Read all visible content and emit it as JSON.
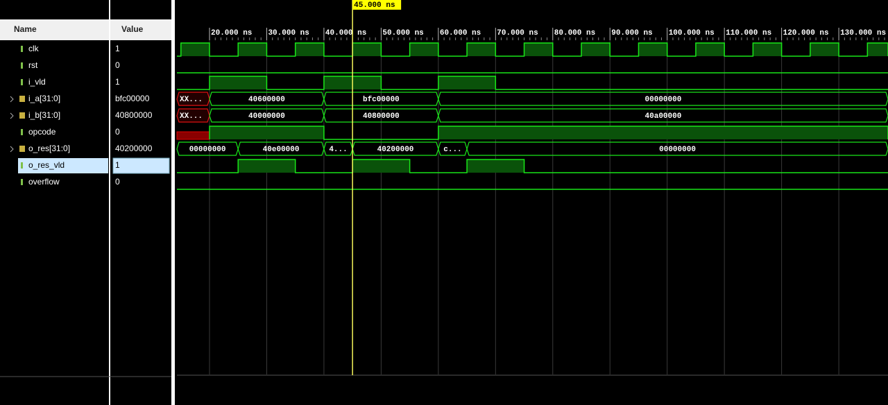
{
  "columns": {
    "name": "Name",
    "value": "Value"
  },
  "cursor": {
    "time": 45,
    "label": "45.000 ns"
  },
  "timeline": {
    "xlim": [
      14.3,
      138.6
    ],
    "ticks": [
      {
        "value": 20,
        "label": "20.000 ns"
      },
      {
        "value": 30,
        "label": "30.000 ns"
      },
      {
        "value": 40,
        "label": "40.000 ns"
      },
      {
        "value": 50,
        "label": "50.000 ns"
      },
      {
        "value": 60,
        "label": "60.000 ns"
      },
      {
        "value": 70,
        "label": "70.000 ns"
      },
      {
        "value": 80,
        "label": "80.000 ns"
      },
      {
        "value": 90,
        "label": "90.000 ns"
      },
      {
        "value": 100,
        "label": "100.000 ns"
      },
      {
        "value": 110,
        "label": "110.000 ns"
      },
      {
        "value": 120,
        "label": "120.000 ns"
      },
      {
        "value": 130,
        "label": "130.000 ns"
      }
    ]
  },
  "signals": [
    {
      "name": "clk",
      "value": "1",
      "kind": "bit",
      "high": [
        [
          15,
          20
        ],
        [
          25,
          30
        ],
        [
          35,
          40
        ],
        [
          45,
          50
        ],
        [
          55,
          60
        ],
        [
          65,
          70
        ],
        [
          75,
          80
        ],
        [
          85,
          90
        ],
        [
          95,
          100
        ],
        [
          105,
          110
        ],
        [
          115,
          120
        ],
        [
          125,
          130
        ],
        [
          135,
          138.6
        ]
      ]
    },
    {
      "name": "rst",
      "value": "0",
      "kind": "bit",
      "high": []
    },
    {
      "name": "i_vld",
      "value": "1",
      "kind": "bit",
      "high": [
        [
          20,
          30
        ],
        [
          40,
          50
        ],
        [
          60,
          70
        ]
      ]
    },
    {
      "name": "i_a[31:0]",
      "value": "bfc00000",
      "kind": "bus",
      "segments": [
        {
          "start": 14.3,
          "end": 20,
          "label": "XX...",
          "unknown": true
        },
        {
          "start": 20,
          "end": 40,
          "label": "40600000"
        },
        {
          "start": 40,
          "end": 60,
          "label": "bfc00000"
        },
        {
          "start": 60,
          "end": 138.6,
          "label": "00000000"
        }
      ]
    },
    {
      "name": "i_b[31:0]",
      "value": "40800000",
      "kind": "bus",
      "segments": [
        {
          "start": 14.3,
          "end": 20,
          "label": "XX...",
          "unknown": true
        },
        {
          "start": 20,
          "end": 40,
          "label": "40000000"
        },
        {
          "start": 40,
          "end": 60,
          "label": "40800000"
        },
        {
          "start": 60,
          "end": 138.6,
          "label": "40a00000"
        }
      ]
    },
    {
      "name": "opcode",
      "value": "0",
      "kind": "bit",
      "unknown": [
        [
          14.3,
          20
        ]
      ],
      "high": [
        [
          20,
          40
        ],
        [
          60,
          138.6
        ]
      ]
    },
    {
      "name": "o_res[31:0]",
      "value": "40200000",
      "kind": "bus",
      "segments": [
        {
          "start": 14.3,
          "end": 25,
          "label": "00000000"
        },
        {
          "start": 25,
          "end": 40,
          "label": "40e00000"
        },
        {
          "start": 40,
          "end": 45,
          "label": "4..."
        },
        {
          "start": 45,
          "end": 60,
          "label": "40200000"
        },
        {
          "start": 60,
          "end": 65,
          "label": "c..."
        },
        {
          "start": 65,
          "end": 138.6,
          "label": "00000000"
        }
      ]
    },
    {
      "name": "o_res_vld",
      "value": "1",
      "kind": "bit",
      "selected": true,
      "high": [
        [
          25,
          35
        ],
        [
          45,
          55
        ],
        [
          65,
          75
        ]
      ]
    },
    {
      "name": "overflow",
      "value": "0",
      "kind": "bit",
      "high": []
    }
  ]
}
